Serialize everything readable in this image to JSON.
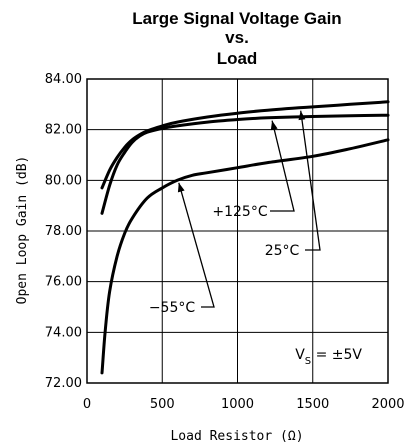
{
  "chart_data": {
    "type": "line",
    "title": [
      "Large Signal Voltage Gain",
      "vs.",
      "Load"
    ],
    "xlabel": "Load Resistor (Ω)",
    "ylabel": "Open Loop Gain (dB)",
    "xlim": [
      0,
      2000
    ],
    "ylim": [
      72,
      84
    ],
    "xticks": [
      "0",
      "500",
      "1000",
      "1500",
      "2000"
    ],
    "yticks": [
      "72.00",
      "74.00",
      "76.00",
      "78.00",
      "80.00",
      "82.00",
      "84.00"
    ],
    "grid": true,
    "series": [
      {
        "name": "25°C",
        "x": [
          100,
          150,
          200,
          250,
          300,
          350,
          400,
          500,
          600,
          800,
          1000,
          1200,
          1500,
          1750,
          2000
        ],
        "y": [
          79.7,
          80.4,
          80.9,
          81.3,
          81.6,
          81.8,
          81.95,
          82.15,
          82.3,
          82.5,
          82.65,
          82.77,
          82.9,
          83.0,
          83.1
        ]
      },
      {
        "name": "+125°C",
        "x": [
          100,
          150,
          200,
          250,
          300,
          350,
          400,
          500,
          600,
          800,
          1000,
          1200,
          1500,
          1750,
          2000
        ],
        "y": [
          78.7,
          79.8,
          80.6,
          81.1,
          81.5,
          81.75,
          81.9,
          82.05,
          82.15,
          82.3,
          82.4,
          82.47,
          82.52,
          82.55,
          82.57
        ]
      },
      {
        "name": "−55°C",
        "x": [
          100,
          120,
          150,
          200,
          250,
          300,
          400,
          500,
          600,
          700,
          800,
          1000,
          1200,
          1500,
          1750,
          2000
        ],
        "y": [
          72.4,
          74.0,
          75.6,
          77.0,
          77.9,
          78.5,
          79.3,
          79.7,
          80.0,
          80.2,
          80.3,
          80.5,
          80.7,
          80.95,
          81.25,
          81.6
        ]
      }
    ],
    "annotations": [
      {
        "label": "+125°C",
        "series": 1
      },
      {
        "label": "25°C",
        "series": 0
      },
      {
        "label": "−55°C",
        "series": 2
      }
    ],
    "condition": {
      "main": "V",
      "sub": "S",
      "rest": " = ±5V"
    }
  }
}
